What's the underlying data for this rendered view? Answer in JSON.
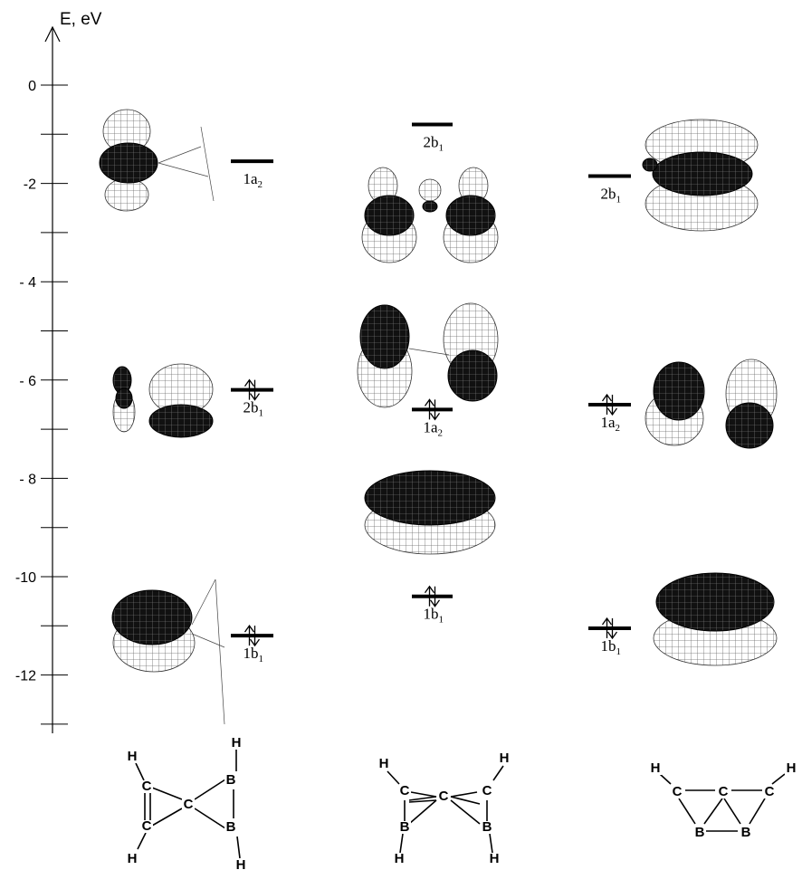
{
  "axis": {
    "title": "E, eV",
    "unit": "eV",
    "ticks": [
      {
        "value": 0,
        "label": "0"
      },
      {
        "value": -2,
        "label": "-2"
      },
      {
        "value": -4,
        "label": "- 4"
      },
      {
        "value": -6,
        "label": "- 6"
      },
      {
        "value": -8,
        "label": "- 8"
      },
      {
        "value": -10,
        "label": "-10"
      },
      {
        "value": -12,
        "label": "-12"
      }
    ],
    "minor_ticks": [
      -1,
      -3,
      -5,
      -7,
      -9,
      -11,
      -13
    ]
  },
  "columns": [
    {
      "levels": [
        {
          "energy": -1.55,
          "label": "1a",
          "sub": "2",
          "occupied": false
        },
        {
          "energy": -6.2,
          "label": "2b",
          "sub": "1",
          "occupied": true
        },
        {
          "energy": -11.2,
          "label": "1b",
          "sub": "1",
          "occupied": true
        }
      ],
      "structure_atoms": [
        "H",
        "C",
        "C",
        "H",
        "C",
        "B",
        "B",
        "H",
        "H"
      ]
    },
    {
      "levels": [
        {
          "energy": -0.8,
          "label": "2b",
          "sub": "1",
          "occupied": false
        },
        {
          "energy": -6.6,
          "label": "1a",
          "sub": "2",
          "occupied": true
        },
        {
          "energy": -10.4,
          "label": "1b",
          "sub": "1",
          "occupied": true
        }
      ],
      "structure_atoms": [
        "H",
        "C",
        "C",
        "C",
        "H",
        "B",
        "B",
        "H",
        "H"
      ]
    },
    {
      "levels": [
        {
          "energy": -1.85,
          "label": "2b",
          "sub": "1",
          "occupied": false
        },
        {
          "energy": -6.5,
          "label": "1a",
          "sub": "2",
          "occupied": true
        },
        {
          "energy": -11.05,
          "label": "1b",
          "sub": "1",
          "occupied": true
        }
      ],
      "structure_atoms": [
        "H",
        "C",
        "C",
        "C",
        "H",
        "B",
        "B"
      ]
    }
  ],
  "colors": {
    "line": "#000000",
    "lobe_dark": "#111111",
    "lobe_light": "#ffffff",
    "mesh": "#555555"
  }
}
